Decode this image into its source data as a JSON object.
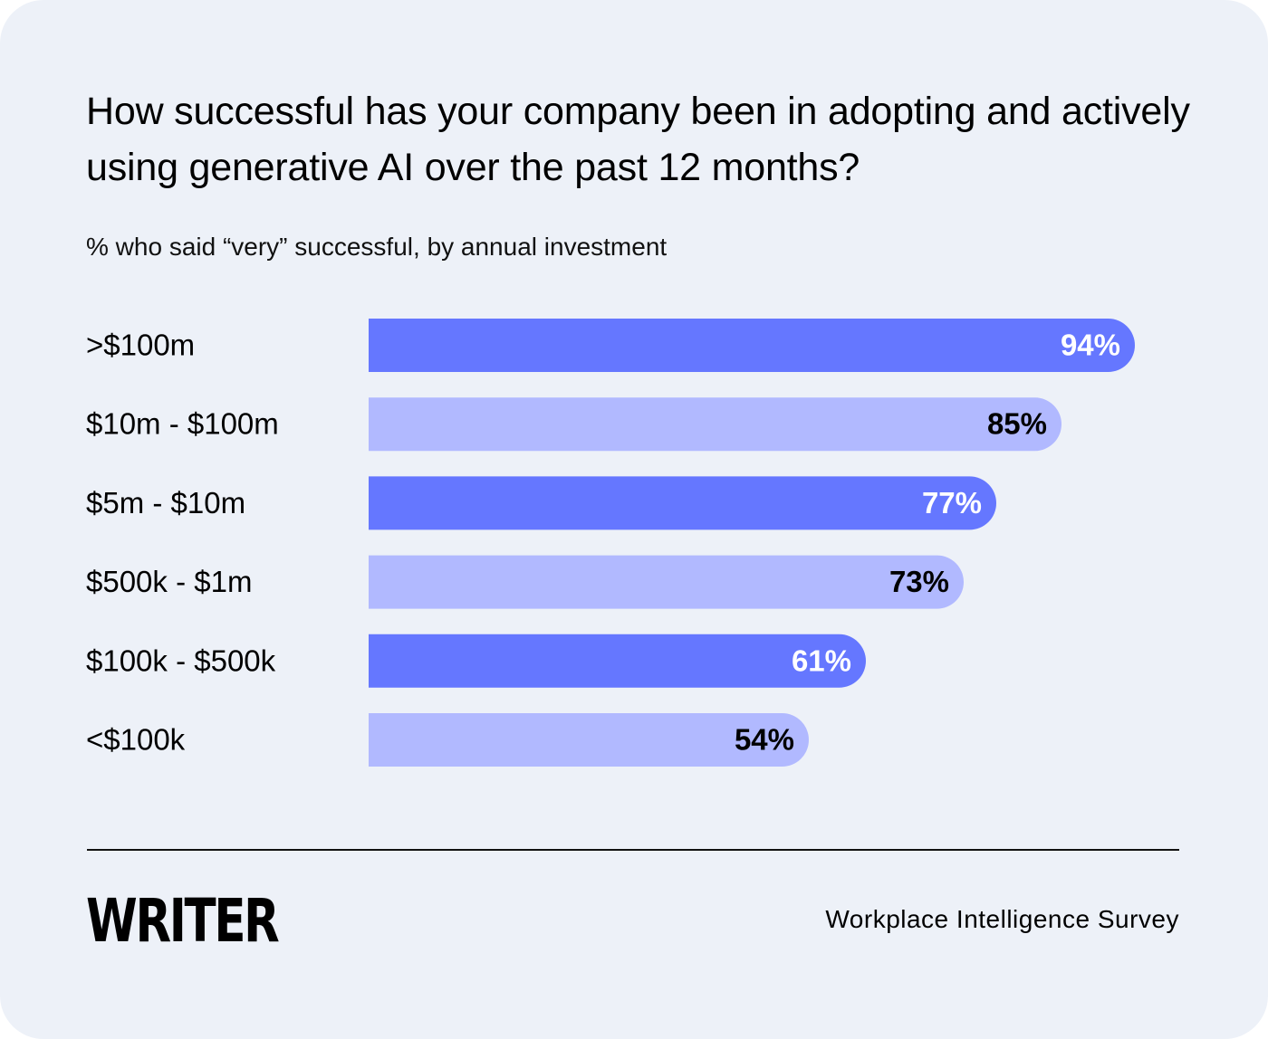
{
  "title": "How successful has your company been in adopting and actively using generative AI over the past 12 months?",
  "subtitle": "% who said “very” successful, by annual investment",
  "footer": {
    "logo_text": "WRITER",
    "source": "Workplace Intelligence Survey"
  },
  "colors": {
    "background": "#edf1f8",
    "bar_dark": "#6577ff",
    "bar_light": "#b1b9ff",
    "label_on_dark": "#ffffff",
    "label_on_light": "#000000"
  },
  "chart_data": {
    "type": "bar",
    "orientation": "horizontal",
    "title": "How successful has your company been in adopting and actively using generative AI over the past 12 months?",
    "subtitle": "% who said “very” successful, by annual investment",
    "categories": [
      ">$100m",
      "$10m - $100m",
      "$5m - $10m",
      "$500k - $1m",
      "$100k - $500k",
      "<$100k"
    ],
    "values": [
      94,
      85,
      77,
      73,
      61,
      54
    ],
    "value_labels": [
      "94%",
      "85%",
      "77%",
      "73%",
      "61%",
      "54%"
    ],
    "bar_styles": [
      "dark",
      "light",
      "dark",
      "light",
      "dark",
      "light"
    ],
    "xlim": [
      0,
      100
    ],
    "grid": false,
    "legend": "none"
  }
}
